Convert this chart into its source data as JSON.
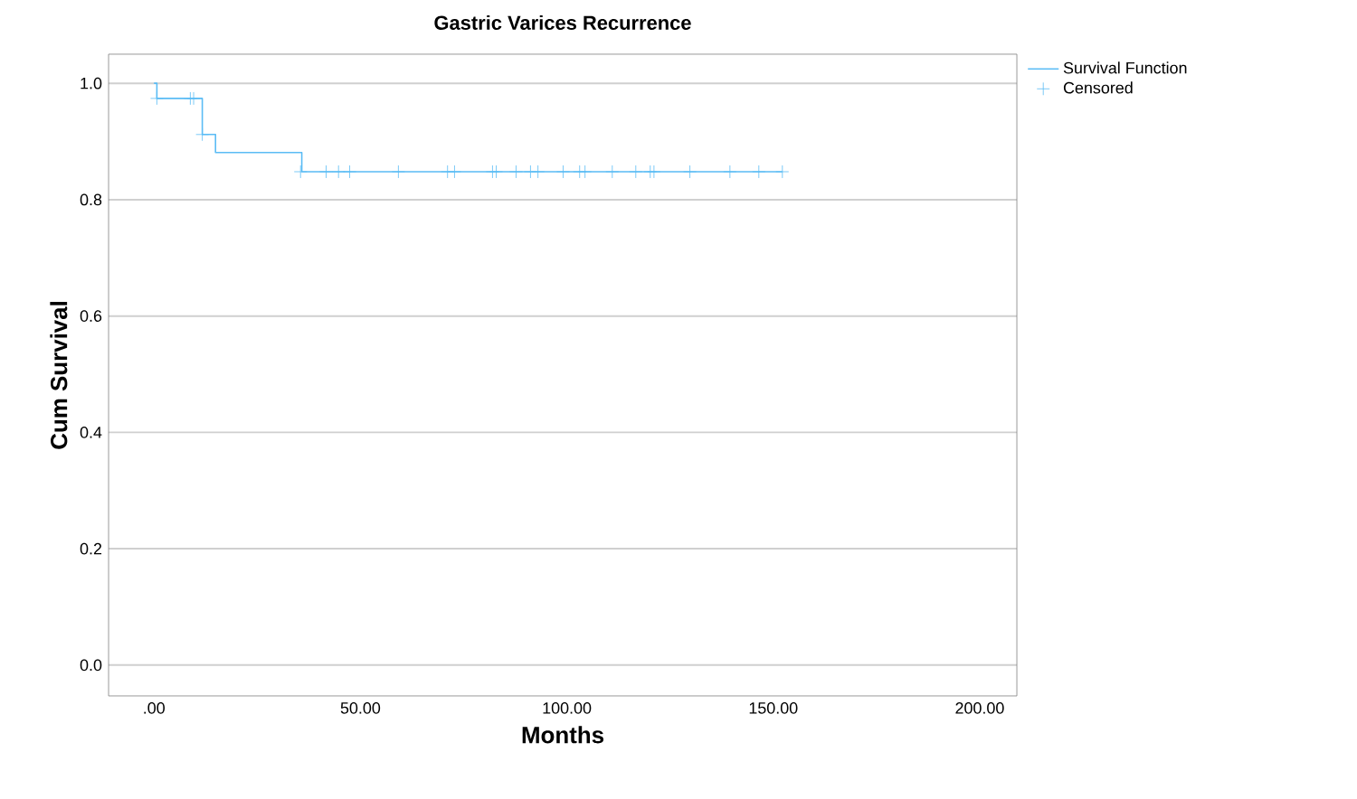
{
  "chart_data": {
    "type": "step",
    "title": "Gastric Varices Recurrence",
    "xlabel": "Months",
    "ylabel": "Cum Survival",
    "xlim": [
      -11,
      209
    ],
    "ylim": [
      -0.053,
      1.05
    ],
    "xticks": [
      {
        "value": 0,
        "label": ".00"
      },
      {
        "value": 50,
        "label": "50.00"
      },
      {
        "value": 100,
        "label": "100.00"
      },
      {
        "value": 150,
        "label": "150.00"
      },
      {
        "value": 200,
        "label": "200.00"
      }
    ],
    "yticks": [
      {
        "value": 0,
        "label": "0.0"
      },
      {
        "value": 0.2,
        "label": "0.2"
      },
      {
        "value": 0.4,
        "label": "0.4"
      },
      {
        "value": 0.6,
        "label": "0.6"
      },
      {
        "value": 0.8,
        "label": "0.8"
      },
      {
        "value": 1,
        "label": "1.0"
      }
    ],
    "grid": "y",
    "legend": "top right",
    "series": [
      {
        "name": "Survival Function",
        "color": "#5bbcf5",
        "x": [
          0,
          0.7,
          11.7,
          14.9,
          35.8,
          152.2
        ],
        "values": [
          1,
          0.974,
          0.912,
          0.881,
          0.848,
          0.848
        ]
      },
      {
        "name": "Censored",
        "type": "scatter",
        "marker": "cross",
        "color": "#5bbcf5",
        "x": [
          0.7,
          8.8,
          9.6,
          11.7,
          35.5,
          41.7,
          44.7,
          47.4,
          59.2,
          71.1,
          72.8,
          82.0,
          82.9,
          87.7,
          91.2,
          93.0,
          99.1,
          103.1,
          104.4,
          111.0,
          116.7,
          120.2,
          121.1,
          129.8,
          139.5,
          146.5,
          152.2
        ],
        "values": [
          0.974,
          0.974,
          0.974,
          0.912,
          0.848,
          0.848,
          0.848,
          0.848,
          0.848,
          0.848,
          0.848,
          0.848,
          0.848,
          0.848,
          0.848,
          0.848,
          0.848,
          0.848,
          0.848,
          0.848,
          0.848,
          0.848,
          0.848,
          0.848,
          0.848,
          0.848,
          0.848
        ]
      }
    ]
  }
}
